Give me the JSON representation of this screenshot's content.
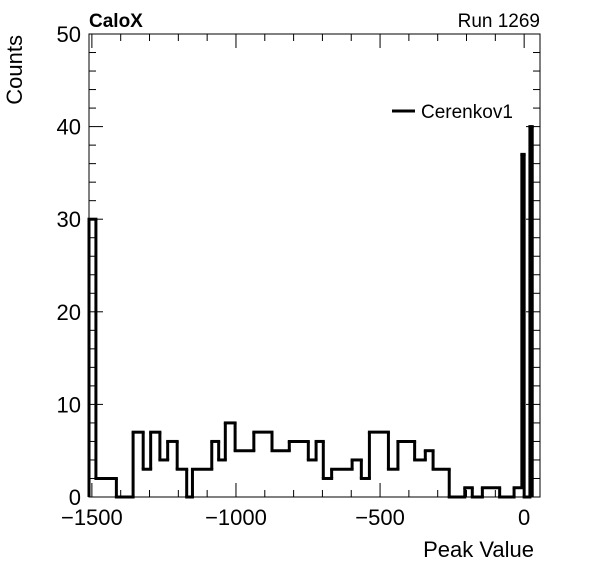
{
  "chart_data": {
    "type": "histogram",
    "title_left": "CaloX",
    "title_right": "Run 1269",
    "xlabel": "Peak Value",
    "ylabel": "Counts",
    "xlim": [
      -1510,
      55
    ],
    "ylim": [
      0,
      50
    ],
    "x_ticks": [
      -1500,
      -1000,
      -500,
      0
    ],
    "x_tick_labels": [
      "−1500",
      "−1000",
      "−500",
      "0"
    ],
    "y_ticks": [
      0,
      10,
      20,
      30,
      40,
      50
    ],
    "y_tick_labels": [
      "0",
      "10",
      "20",
      "30",
      "40",
      "50"
    ],
    "legend_position": "top-right",
    "series": [
      {
        "name": "Cerenkov1",
        "color": "#000000",
        "style": "step",
        "bins": [
          [
            -1510,
            -1486,
            30
          ],
          [
            -1486,
            -1415,
            2
          ],
          [
            -1415,
            -1357,
            0
          ],
          [
            -1357,
            -1322,
            7
          ],
          [
            -1322,
            -1296,
            3
          ],
          [
            -1296,
            -1264,
            7
          ],
          [
            -1264,
            -1237,
            4
          ],
          [
            -1237,
            -1204,
            6
          ],
          [
            -1204,
            -1171,
            3
          ],
          [
            -1171,
            -1151,
            0
          ],
          [
            -1151,
            -1084,
            3
          ],
          [
            -1084,
            -1060,
            6
          ],
          [
            -1060,
            -1037,
            4
          ],
          [
            -1037,
            -1003,
            8
          ],
          [
            -1003,
            -938,
            5
          ],
          [
            -938,
            -875,
            7
          ],
          [
            -875,
            -815,
            5
          ],
          [
            -815,
            -749,
            6
          ],
          [
            -749,
            -722,
            4
          ],
          [
            -722,
            -697,
            6
          ],
          [
            -697,
            -668,
            2
          ],
          [
            -668,
            -597,
            3
          ],
          [
            -597,
            -565,
            4
          ],
          [
            -565,
            -537,
            2
          ],
          [
            -537,
            -471,
            7
          ],
          [
            -471,
            -438,
            3
          ],
          [
            -438,
            -380,
            6
          ],
          [
            -380,
            -343,
            4
          ],
          [
            -343,
            -316,
            5
          ],
          [
            -316,
            -260,
            3
          ],
          [
            -260,
            -206,
            0
          ],
          [
            -206,
            -180,
            1
          ],
          [
            -180,
            -145,
            0
          ],
          [
            -145,
            -85,
            1
          ],
          [
            -85,
            -35,
            0
          ],
          [
            -35,
            -8,
            1
          ],
          [
            -8,
            0,
            37
          ],
          [
            0,
            20,
            0
          ],
          [
            20,
            28,
            40
          ]
        ]
      }
    ]
  }
}
